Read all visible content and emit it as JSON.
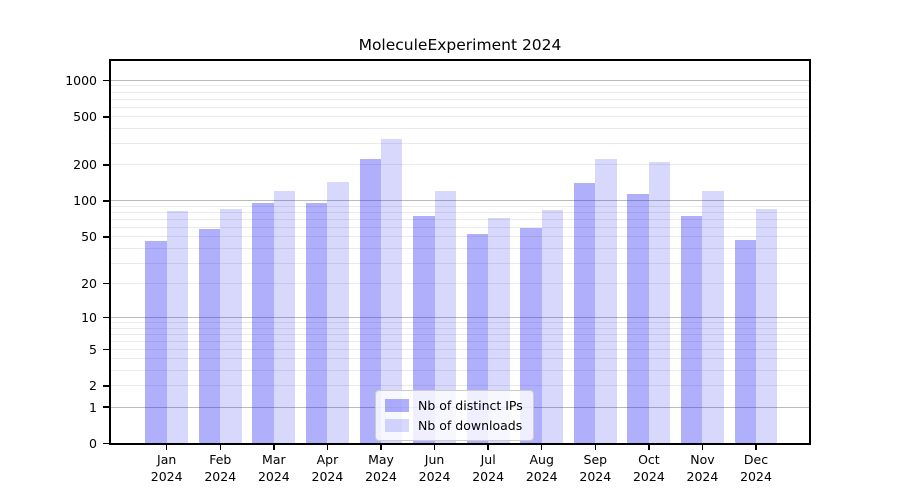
{
  "figure": {
    "title": "MoleculeExperiment 2024"
  },
  "chart_data": {
    "type": "bar",
    "title": "MoleculeExperiment 2024",
    "categories": [
      "Jan",
      "Feb",
      "Mar",
      "Apr",
      "May",
      "Jun",
      "Jul",
      "Aug",
      "Sep",
      "Oct",
      "Nov",
      "Dec"
    ],
    "category_year": "2024",
    "series": [
      {
        "name": "Nb of distinct IPs",
        "values": [
          46,
          58,
          96,
          97,
          225,
          75,
          53,
          59,
          142,
          115,
          75,
          47
        ],
        "fill": "rgba(20,20,245,0.34)",
        "approx_hex": "#aaaaf9"
      },
      {
        "name": "Nb of downloads",
        "values": [
          82,
          85,
          122,
          144,
          330,
          120,
          72,
          84,
          224,
          213,
          122,
          86
        ],
        "fill": "rgba(20,20,245,0.165)",
        "approx_hex": "#d6d6fb"
      }
    ],
    "y_scale": "log10(1+y)",
    "y_ticks": [
      0,
      1,
      2,
      5,
      10,
      20,
      50,
      100,
      200,
      500,
      1000
    ],
    "ylim": [
      0,
      1400
    ],
    "grid": {
      "major_values": [
        1,
        10,
        100,
        1000
      ],
      "minor_subs": [
        2,
        3,
        4,
        5,
        6,
        7,
        8,
        9
      ],
      "major_color": "#bbbbbb",
      "minor_color": "#eaeaea"
    },
    "legend": {
      "position": "lower center",
      "items": [
        "Nb of distinct IPs",
        "Nb of downloads"
      ]
    }
  }
}
